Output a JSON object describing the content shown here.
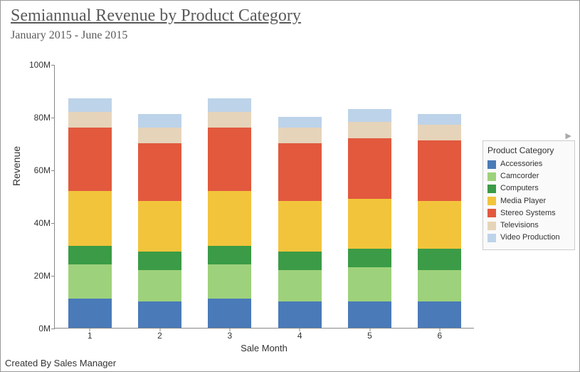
{
  "title": "Semiannual Revenue by Product Category",
  "subtitle": "January 2015 - June 2015",
  "footer": "Created By Sales Manager",
  "chart": {
    "type": "stacked-bar",
    "xlabel": "Sale Month",
    "ylabel": "Revenue",
    "ylim": [
      0,
      100
    ],
    "ytick_step": 20,
    "ytick_suffix": "M",
    "categories": [
      "1",
      "2",
      "3",
      "4",
      "5",
      "6"
    ],
    "series": [
      {
        "name": "Accessories",
        "color": "#4a7ab8",
        "values": [
          11,
          10,
          11,
          10,
          10,
          10
        ]
      },
      {
        "name": "Camcorder",
        "color": "#9ed17b",
        "values": [
          13,
          12,
          13,
          12,
          13,
          12
        ]
      },
      {
        "name": "Computers",
        "color": "#3b9b46",
        "values": [
          7,
          7,
          7,
          7,
          7,
          8
        ]
      },
      {
        "name": "Media Player",
        "color": "#f2c43c",
        "values": [
          21,
          19,
          21,
          19,
          19,
          18
        ]
      },
      {
        "name": "Stereo Systems",
        "color": "#e2593e",
        "values": [
          24,
          22,
          24,
          22,
          23,
          23
        ]
      },
      {
        "name": "Televisions",
        "color": "#e6d4ba",
        "values": [
          6,
          6,
          6,
          6,
          6,
          6
        ]
      },
      {
        "name": "Video Production",
        "color": "#bdd3e9",
        "values": [
          5,
          5,
          5,
          4,
          5,
          4
        ]
      }
    ],
    "bar_width_ratio": 0.62,
    "background_color": "#ffffff",
    "axis_color": "#888888",
    "title_fontsize": 24,
    "subtitle_fontsize": 16,
    "label_fontsize": 13,
    "tick_fontsize": 12,
    "title_color": "#5a5a5a"
  },
  "legend": {
    "title": "Product Category"
  }
}
